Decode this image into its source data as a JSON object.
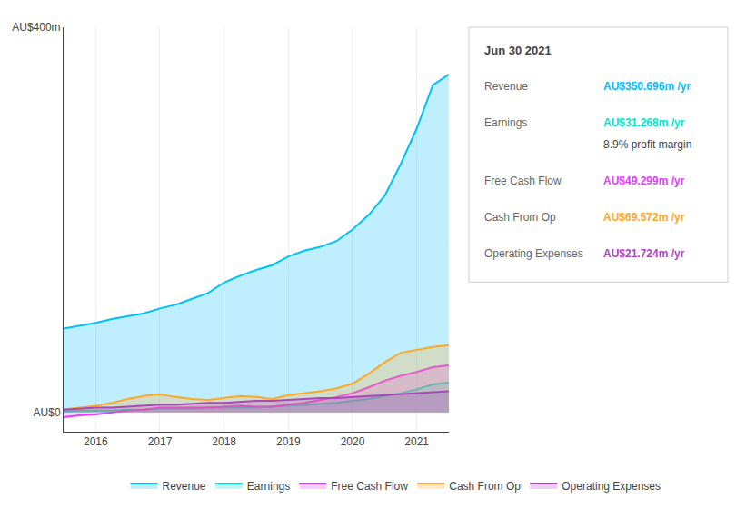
{
  "chart_data": {
    "type": "area",
    "x": [
      2015.5,
      2015.75,
      2016.0,
      2016.25,
      2016.5,
      2016.75,
      2017.0,
      2017.25,
      2017.5,
      2017.75,
      2018.0,
      2018.25,
      2018.5,
      2018.75,
      2019.0,
      2019.25,
      2019.5,
      2019.75,
      2020.0,
      2020.25,
      2020.5,
      2020.75,
      2021.0,
      2021.25,
      2021.5
    ],
    "series": [
      {
        "name": "Revenue",
        "color": "#00bfff",
        "values": [
          87,
          90,
          93,
          97,
          100,
          103,
          108,
          112,
          118,
          124,
          135,
          142,
          148,
          153,
          162,
          168,
          172,
          178,
          190,
          205,
          225,
          258,
          295,
          340,
          351
        ]
      },
      {
        "name": "Earnings",
        "color": "#00e5cc",
        "values": [
          1,
          2,
          2,
          2,
          3,
          3,
          4,
          4,
          4,
          5,
          5,
          5,
          5,
          6,
          7,
          8,
          9,
          10,
          12,
          14,
          17,
          20,
          24,
          29,
          31
        ]
      },
      {
        "name": "Free Cash Flow",
        "color": "#e040fb",
        "values": [
          -5,
          -3,
          -2,
          0,
          2,
          3,
          5,
          5,
          5,
          5,
          6,
          7,
          6,
          6,
          8,
          10,
          13,
          16,
          20,
          26,
          33,
          38,
          42,
          47,
          49
        ]
      },
      {
        "name": "Cash From Op",
        "color": "#ffa726",
        "values": [
          3,
          5,
          7,
          10,
          14,
          17,
          19,
          16,
          14,
          13,
          15,
          17,
          16,
          14,
          18,
          20,
          22,
          25,
          30,
          40,
          52,
          62,
          65,
          68,
          70
        ]
      },
      {
        "name": "Operating Expenses",
        "color": "#ab47bc",
        "values": [
          3,
          4,
          5,
          5,
          6,
          7,
          8,
          8,
          9,
          10,
          10,
          11,
          12,
          12,
          13,
          14,
          15,
          15,
          16,
          17,
          18,
          19,
          20,
          21,
          22
        ]
      }
    ],
    "xlim": [
      2015.5,
      2021.5
    ],
    "xticks": [
      2016,
      2017,
      2018,
      2019,
      2020,
      2021
    ],
    "ylim": [
      -20,
      400
    ],
    "yticks": [
      {
        "value": 0,
        "label": "AU$0"
      },
      {
        "value": 400,
        "label": "AU$400m"
      }
    ],
    "grid": true,
    "legend": "bottom",
    "annotations": [
      {
        "text": "Jun 30 2021"
      },
      {
        "text": "Revenue",
        "value": "AU$350.696m /yr",
        "color": "#00bfff"
      },
      {
        "text": "Earnings",
        "value": "AU$31.268m /yr",
        "color": "#00e5cc",
        "note": "8.9% profit margin"
      },
      {
        "text": "Free Cash Flow",
        "value": "AU$49.299m /yr",
        "color": "#e040fb"
      },
      {
        "text": "Cash From Op",
        "value": "AU$69.572m /yr",
        "color": "#ffa726"
      },
      {
        "text": "Operating Expenses",
        "value": "AU$21.724m /yr",
        "color": "#ab47bc"
      }
    ]
  }
}
